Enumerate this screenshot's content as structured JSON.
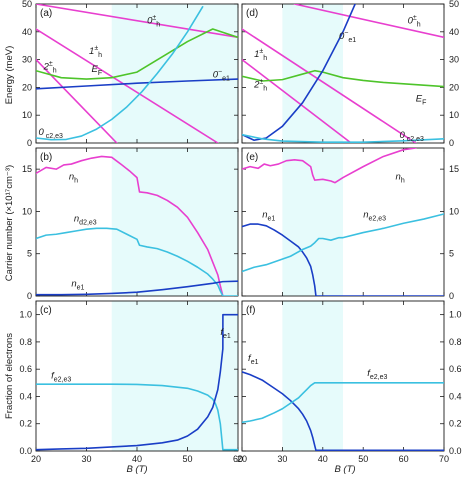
{
  "colors": {
    "magenta": "#e83fcf",
    "green": "#4ec42a",
    "blue": "#1a3ec6",
    "cyan": "#3bc0e0",
    "shade": "#e6fbfb",
    "frame": "#1a1a1a"
  },
  "figure": {
    "xlabel": "B (T)",
    "ylabel_energy": "Energy (meV)",
    "ylabel_carrier": "Carrier number (×10¹⁷cm⁻³)",
    "ylabel_fraction": "Fraction of electrons"
  },
  "chart_data": [
    {
      "panel": "(a)",
      "type": "line",
      "xlim": [
        20,
        60
      ],
      "ylim": [
        0,
        50
      ],
      "xticks": [
        20,
        30,
        40,
        50,
        60
      ],
      "yticks": [
        0,
        10,
        20,
        30,
        40,
        50
      ],
      "ytick_side": "left",
      "shade_x": [
        35,
        60
      ],
      "series": [
        {
          "id": "a_0h",
          "color": "magenta",
          "x": [
            20,
            60
          ],
          "y": [
            50,
            38
          ]
        },
        {
          "id": "a_1h",
          "color": "magenta",
          "x": [
            20,
            56
          ],
          "y": [
            41,
            0
          ]
        },
        {
          "id": "a_2h",
          "color": "magenta",
          "x": [
            20,
            36
          ],
          "y": [
            30,
            0
          ]
        },
        {
          "id": "a_ef",
          "color": "green",
          "x": [
            20,
            25,
            30,
            35,
            40,
            45,
            50,
            55,
            60
          ],
          "y": [
            26,
            23.5,
            23,
            23.5,
            25.5,
            31,
            36.5,
            41,
            38
          ]
        },
        {
          "id": "a_e1",
          "color": "blue",
          "x": [
            20,
            30,
            40,
            50,
            60
          ],
          "y": [
            19.5,
            20.5,
            21.5,
            22.3,
            23
          ]
        },
        {
          "id": "a_ce",
          "color": "cyan",
          "x": [
            20,
            23,
            26,
            29,
            32,
            35,
            38,
            41,
            44,
            47,
            50,
            53
          ],
          "y": [
            1.8,
            1.2,
            1.3,
            2.5,
            5,
            8.5,
            13,
            18.5,
            25,
            32,
            40,
            49
          ]
        }
      ],
      "labels": [
        {
          "text": "0±h",
          "main": "0",
          "sup": "±",
          "sub": "h",
          "x": 42,
          "y": 43,
          "color": "frame",
          "style": "math"
        },
        {
          "text": "1±h",
          "main": "1",
          "sup": "±",
          "sub": "h",
          "x": 30.5,
          "y": 32,
          "color": "frame",
          "style": "math"
        },
        {
          "text": "2±h",
          "main": "2",
          "sup": "±",
          "sub": "h",
          "x": 21.5,
          "y": 26.5,
          "color": "frame",
          "style": "math"
        },
        {
          "text": "EF",
          "main": "E",
          "sub": "F",
          "x": 31,
          "y": 25.5,
          "color": "frame",
          "style": "italic"
        },
        {
          "text": "0−e1",
          "main": "0",
          "sup": "−",
          "sub": "e1",
          "x": 55,
          "y": 23.5,
          "color": "frame",
          "style": "math"
        },
        {
          "text": "0 c2,e3",
          "main": "0",
          "sub": " c2,e3",
          "x": 20.5,
          "y": 2.8,
          "color": "frame",
          "style": "math"
        }
      ]
    },
    {
      "panel": "(d)",
      "type": "line",
      "xlim": [
        20,
        70
      ],
      "ylim": [
        0,
        50
      ],
      "xticks": [
        20,
        30,
        40,
        50,
        60,
        70
      ],
      "yticks": [
        0,
        10,
        20,
        30,
        40,
        50
      ],
      "ytick_side": "right",
      "shade_x": [
        30,
        45
      ],
      "series": [
        {
          "id": "d_0h",
          "color": "magenta",
          "x": [
            33,
            70
          ],
          "y": [
            50,
            38
          ]
        },
        {
          "id": "d_1h",
          "color": "magenta",
          "x": [
            20,
            63
          ],
          "y": [
            41,
            0
          ]
        },
        {
          "id": "d_2h",
          "color": "magenta",
          "x": [
            20,
            47
          ],
          "y": [
            30,
            0
          ]
        },
        {
          "id": "d_ef",
          "color": "green",
          "x": [
            20,
            25,
            30,
            35,
            38,
            40,
            45,
            50,
            55,
            60,
            65,
            70
          ],
          "y": [
            24,
            22.3,
            22.8,
            24.8,
            26,
            25.5,
            23.5,
            22.5,
            21.8,
            21.3,
            20.8,
            20.3
          ]
        },
        {
          "id": "d_e1",
          "color": "blue",
          "x": [
            20,
            23,
            26,
            30,
            35,
            40,
            45,
            48
          ],
          "y": [
            3,
            1,
            1.8,
            6,
            14.5,
            26,
            40,
            50
          ]
        },
        {
          "id": "d_ce",
          "color": "cyan",
          "x": [
            20,
            25,
            30,
            40,
            50,
            60,
            70
          ],
          "y": [
            3,
            1.5,
            0.7,
            0.3,
            0.3,
            0.8,
            1.5
          ]
        }
      ],
      "labels": [
        {
          "text": "0−e1",
          "main": "0",
          "sup": "−",
          "sub": "e1",
          "x": 44,
          "y": 37.5,
          "color": "frame",
          "style": "math"
        },
        {
          "text": "0±h",
          "main": "0",
          "sup": "±",
          "sub": "h",
          "x": 61,
          "y": 43,
          "color": "frame",
          "style": "math"
        },
        {
          "text": "1±h",
          "main": "1",
          "sup": "±",
          "sub": "h",
          "x": 23,
          "y": 31,
          "color": "frame",
          "style": "math"
        },
        {
          "text": "2±h",
          "main": "2",
          "sup": "±",
          "sub": "h",
          "x": 23,
          "y": 20,
          "color": "frame",
          "style": "math"
        },
        {
          "text": "EF",
          "main": "E",
          "sub": "F",
          "x": 63,
          "y": 15,
          "color": "frame",
          "style": "italic"
        },
        {
          "text": "0 c2,e3",
          "main": "0",
          "sub": " c2,e3",
          "x": 59,
          "y": 1.8,
          "color": "frame",
          "style": "math"
        }
      ]
    },
    {
      "panel": "(b)",
      "type": "line",
      "xlim": [
        20,
        60
      ],
      "ylim": [
        0,
        17.5
      ],
      "xticks": [
        20,
        30,
        40,
        50,
        60
      ],
      "yticks": [
        0,
        5,
        10,
        15
      ],
      "ytick_side": "left",
      "shade_x": [
        35,
        60
      ],
      "series": [
        {
          "id": "b_nh",
          "color": "magenta",
          "x": [
            20,
            22,
            24,
            25.5,
            27,
            29,
            31,
            33,
            35,
            37,
            38.5,
            40,
            40.5,
            42,
            44,
            46,
            48,
            50,
            52,
            54,
            55,
            56,
            56.5,
            57
          ],
          "y": [
            14.5,
            15.2,
            15,
            15.5,
            15.6,
            16,
            16.3,
            16.5,
            16.4,
            15.5,
            14.8,
            14,
            12.3,
            12.2,
            11.9,
            11.3,
            10.5,
            9.3,
            7.5,
            5.5,
            4,
            2.5,
            1.2,
            0
          ]
        },
        {
          "id": "b_nd",
          "color": "cyan",
          "x": [
            20,
            22,
            24,
            26,
            28,
            30,
            32,
            34,
            36,
            38,
            40,
            40.5,
            42,
            44,
            46,
            48,
            50,
            52,
            54,
            55,
            56,
            56.5,
            57,
            60
          ],
          "y": [
            6.8,
            7.2,
            7.3,
            7.5,
            7.7,
            7.9,
            8,
            8,
            7.9,
            7.3,
            6.7,
            6,
            5.8,
            5.6,
            5.2,
            4.7,
            4.1,
            3.4,
            2.6,
            2,
            1.3,
            0.6,
            0,
            0
          ]
        },
        {
          "id": "b_ne",
          "color": "blue",
          "x": [
            20,
            25,
            30,
            35,
            40,
            45,
            50,
            55,
            57,
            60
          ],
          "y": [
            0.15,
            0.15,
            0.2,
            0.3,
            0.45,
            0.75,
            1.1,
            1.5,
            1.7,
            1.75
          ]
        }
      ],
      "labels": [
        {
          "text": "nh",
          "main": "n",
          "sub": "h",
          "x": 26.5,
          "y": 13.8,
          "color": "frame",
          "style": "italic"
        },
        {
          "text": "nd2,e3",
          "main": "n",
          "sub": "d2,e3",
          "x": 27.5,
          "y": 8.8,
          "color": "frame",
          "style": "italic"
        },
        {
          "text": "ne1",
          "main": "n",
          "sub": "e1",
          "x": 27,
          "y": 1.1,
          "color": "frame",
          "style": "italic"
        }
      ]
    },
    {
      "panel": "(e)",
      "type": "line",
      "xlim": [
        20,
        70
      ],
      "ylim": [
        0,
        17.5
      ],
      "xticks": [
        20,
        30,
        40,
        50,
        60,
        70
      ],
      "yticks": [
        0,
        5,
        10,
        15
      ],
      "ytick_side": "right",
      "shade_x": [
        30,
        45
      ],
      "series": [
        {
          "id": "e_nh",
          "color": "magenta",
          "x": [
            20,
            22,
            24,
            25.5,
            27,
            29,
            31,
            33,
            35,
            37,
            37.5,
            38,
            40,
            42,
            43,
            45,
            50,
            55,
            60,
            63
          ],
          "y": [
            15,
            15.3,
            15.1,
            15.6,
            15.4,
            15.6,
            16,
            16.1,
            16,
            15.3,
            14.3,
            13.7,
            13.8,
            13.6,
            13.4,
            14,
            15.3,
            16.5,
            17.3,
            17.5
          ]
        },
        {
          "id": "e_ne",
          "color": "blue",
          "x": [
            20,
            22,
            24,
            26,
            28,
            30,
            32,
            34,
            35,
            36,
            37,
            37.5,
            38,
            38.3,
            40,
            70
          ],
          "y": [
            8.2,
            8.5,
            8.5,
            8.3,
            7.8,
            7.2,
            6.5,
            5.8,
            5.2,
            4.5,
            3.5,
            2.5,
            1.2,
            0,
            0,
            0
          ]
        },
        {
          "id": "e_nc",
          "color": "cyan",
          "x": [
            20,
            23,
            26,
            29,
            32,
            35,
            37,
            38,
            39,
            40,
            42,
            44,
            45,
            50,
            55,
            60,
            65,
            70
          ],
          "y": [
            2.9,
            3.4,
            3.7,
            4.2,
            4.7,
            5.5,
            5.9,
            6.3,
            6.8,
            6.8,
            6.6,
            6.9,
            6.9,
            7.5,
            8,
            8.6,
            9.1,
            9.7
          ]
        }
      ],
      "labels": [
        {
          "text": "ne1",
          "main": "n",
          "sub": "e1",
          "x": 25,
          "y": 9.3,
          "color": "frame",
          "style": "italic"
        },
        {
          "text": "nh",
          "main": "n",
          "sub": "h",
          "x": 58,
          "y": 13.8,
          "color": "frame",
          "style": "italic"
        },
        {
          "text": "ne2,e3",
          "main": "n",
          "sub": "e2,e3",
          "x": 50,
          "y": 9.3,
          "color": "frame",
          "style": "italic"
        }
      ]
    },
    {
      "panel": "(c)",
      "type": "line",
      "xlim": [
        20,
        60
      ],
      "ylim": [
        0,
        1.1
      ],
      "xticks": [
        20,
        30,
        40,
        50,
        60
      ],
      "yticks": [
        0,
        0.2,
        0.4,
        0.6,
        0.8,
        1.0
      ],
      "ytick_side": "left",
      "shade_x": [
        35,
        60
      ],
      "series": [
        {
          "id": "c_fc",
          "color": "cyan",
          "x": [
            20,
            25,
            30,
            35,
            40,
            45,
            50,
            52,
            54,
            55,
            55.5,
            56,
            56.5,
            57,
            60
          ],
          "y": [
            0.49,
            0.49,
            0.49,
            0.49,
            0.488,
            0.48,
            0.46,
            0.44,
            0.41,
            0.38,
            0.35,
            0.3,
            0.2,
            0.01,
            0.01
          ]
        },
        {
          "id": "c_fe",
          "color": "blue",
          "x": [
            20,
            25,
            30,
            35,
            40,
            45,
            48,
            50,
            52,
            54,
            55,
            56,
            56.5,
            57,
            57.01,
            60
          ],
          "y": [
            0.01,
            0.015,
            0.02,
            0.03,
            0.04,
            0.06,
            0.08,
            0.11,
            0.16,
            0.25,
            0.32,
            0.45,
            0.58,
            0.75,
            1.0,
            1.0
          ]
        }
      ],
      "labels": [
        {
          "text": "fe1",
          "main": "f",
          "sub": "e1",
          "x": 56.5,
          "y": 0.85,
          "color": "frame",
          "style": "italic"
        },
        {
          "text": "fe2,e3",
          "main": "f",
          "sub": "e2,e3",
          "x": 23,
          "y": 0.53,
          "color": "frame",
          "style": "italic"
        }
      ]
    },
    {
      "panel": "(f)",
      "type": "line",
      "xlim": [
        20,
        70
      ],
      "ylim": [
        0,
        1.1
      ],
      "xticks": [
        20,
        30,
        40,
        50,
        60,
        70
      ],
      "yticks": [
        0,
        0.2,
        0.4,
        0.6,
        0.8,
        1.0
      ],
      "ytick_side": "right",
      "shade_x": [
        30,
        45
      ],
      "series": [
        {
          "id": "f_fe",
          "color": "blue",
          "x": [
            20,
            22,
            25,
            28,
            30,
            32,
            34,
            35,
            36,
            37,
            37.5,
            38,
            38.3,
            40,
            70
          ],
          "y": [
            0.58,
            0.56,
            0.52,
            0.46,
            0.42,
            0.37,
            0.31,
            0.27,
            0.22,
            0.15,
            0.1,
            0.04,
            0.005,
            0.005,
            0.005
          ]
        },
        {
          "id": "f_fc",
          "color": "cyan",
          "x": [
            20,
            22,
            25,
            28,
            30,
            32,
            34,
            35,
            36,
            37,
            38,
            38.3,
            40,
            70
          ],
          "y": [
            0.21,
            0.22,
            0.24,
            0.28,
            0.31,
            0.35,
            0.39,
            0.42,
            0.45,
            0.48,
            0.5,
            0.5,
            0.5,
            0.5
          ]
        }
      ],
      "labels": [
        {
          "text": "fe1",
          "main": "f",
          "sub": "e1",
          "x": 21.5,
          "y": 0.66,
          "color": "frame",
          "style": "italic"
        },
        {
          "text": "fe2,e3",
          "main": "f",
          "sub": "e2,e3",
          "x": 51,
          "y": 0.55,
          "color": "frame",
          "style": "italic"
        }
      ]
    }
  ]
}
